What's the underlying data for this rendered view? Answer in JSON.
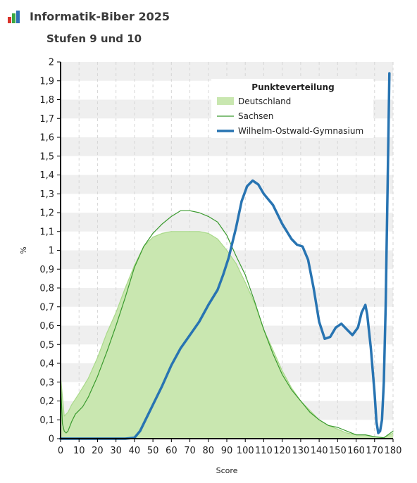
{
  "header": {
    "title": "Informatik-Biber 2025",
    "subtitle": "Stufen 9 und 10"
  },
  "colors": {
    "deutschland_fill": "#c9e7b0",
    "deutschland_line": "#a9d98a",
    "sachsen": "#3a9a2e",
    "gymnasium": "#2874b2",
    "band": "#efefef",
    "logo": [
      "#d9342b",
      "#3aa844",
      "#2f6fb6"
    ]
  },
  "chart_data": {
    "type": "line",
    "xlabel": "Score",
    "ylabel": "%",
    "xlim": [
      0,
      180
    ],
    "ylim": [
      0,
      2
    ],
    "x_ticks": [
      "0",
      "10",
      "20",
      "30",
      "40",
      "50",
      "60",
      "70",
      "80",
      "90",
      "100",
      "110",
      "120",
      "130",
      "140",
      "150",
      "160",
      "170",
      "180"
    ],
    "y_ticks": [
      "0",
      "0,1",
      "0,2",
      "0,3",
      "0,4",
      "0,5",
      "0,6",
      "0,7",
      "0,8",
      "0,9",
      "1",
      "1,1",
      "1,2",
      "1,3",
      "1,4",
      "1,5",
      "1,6",
      "1,7",
      "1,8",
      "1,9",
      "2"
    ],
    "legend": {
      "title": "Punkteverteilung",
      "position": "top-right",
      "entries": [
        "Deutschland",
        "Sachsen",
        "Wilhelm-Ostwald-Gymnasium"
      ]
    },
    "series": [
      {
        "name": "Deutschland",
        "style": "area",
        "points": [
          [
            0,
            0.33
          ],
          [
            2,
            0.12
          ],
          [
            4,
            0.14
          ],
          [
            6,
            0.18
          ],
          [
            8,
            0.21
          ],
          [
            10,
            0.24
          ],
          [
            15,
            0.32
          ],
          [
            20,
            0.43
          ],
          [
            25,
            0.56
          ],
          [
            30,
            0.67
          ],
          [
            35,
            0.8
          ],
          [
            40,
            0.92
          ],
          [
            45,
            1.02
          ],
          [
            50,
            1.07
          ],
          [
            55,
            1.09
          ],
          [
            60,
            1.1
          ],
          [
            65,
            1.1
          ],
          [
            70,
            1.1
          ],
          [
            75,
            1.1
          ],
          [
            80,
            1.09
          ],
          [
            85,
            1.06
          ],
          [
            90,
            1.0
          ],
          [
            95,
            0.93
          ],
          [
            100,
            0.83
          ],
          [
            105,
            0.72
          ],
          [
            110,
            0.58
          ],
          [
            115,
            0.47
          ],
          [
            120,
            0.36
          ],
          [
            125,
            0.27
          ],
          [
            130,
            0.2
          ],
          [
            135,
            0.15
          ],
          [
            140,
            0.1
          ],
          [
            145,
            0.07
          ],
          [
            150,
            0.05
          ],
          [
            155,
            0.03
          ],
          [
            160,
            0.02
          ],
          [
            165,
            0.02
          ],
          [
            170,
            0.01
          ],
          [
            175,
            0.005
          ],
          [
            180,
            0.03
          ]
        ]
      },
      {
        "name": "Sachsen",
        "style": "thin",
        "points": [
          [
            0,
            0.3
          ],
          [
            1,
            0.08
          ],
          [
            2,
            0.04
          ],
          [
            3,
            0.03
          ],
          [
            4,
            0.04
          ],
          [
            6,
            0.09
          ],
          [
            8,
            0.13
          ],
          [
            10,
            0.15
          ],
          [
            12,
            0.17
          ],
          [
            15,
            0.22
          ],
          [
            20,
            0.33
          ],
          [
            25,
            0.46
          ],
          [
            30,
            0.6
          ],
          [
            35,
            0.75
          ],
          [
            40,
            0.91
          ],
          [
            45,
            1.02
          ],
          [
            50,
            1.09
          ],
          [
            55,
            1.14
          ],
          [
            60,
            1.18
          ],
          [
            65,
            1.21
          ],
          [
            70,
            1.21
          ],
          [
            75,
            1.2
          ],
          [
            80,
            1.18
          ],
          [
            85,
            1.15
          ],
          [
            90,
            1.08
          ],
          [
            95,
            0.97
          ],
          [
            100,
            0.87
          ],
          [
            105,
            0.73
          ],
          [
            110,
            0.58
          ],
          [
            115,
            0.45
          ],
          [
            120,
            0.34
          ],
          [
            125,
            0.26
          ],
          [
            130,
            0.2
          ],
          [
            135,
            0.14
          ],
          [
            140,
            0.1
          ],
          [
            145,
            0.07
          ],
          [
            150,
            0.06
          ],
          [
            155,
            0.04
          ],
          [
            160,
            0.02
          ],
          [
            165,
            0.02
          ],
          [
            170,
            0.01
          ],
          [
            175,
            0.005
          ],
          [
            180,
            0.04
          ]
        ]
      },
      {
        "name": "Wilhelm-Ostwald-Gymnasium",
        "style": "thick",
        "points": [
          [
            0,
            0
          ],
          [
            35,
            0
          ],
          [
            40,
            0.005
          ],
          [
            43,
            0.04
          ],
          [
            46,
            0.1
          ],
          [
            50,
            0.18
          ],
          [
            55,
            0.28
          ],
          [
            60,
            0.39
          ],
          [
            65,
            0.48
          ],
          [
            70,
            0.55
          ],
          [
            75,
            0.62
          ],
          [
            80,
            0.71
          ],
          [
            85,
            0.79
          ],
          [
            88,
            0.87
          ],
          [
            91,
            0.96
          ],
          [
            95,
            1.12
          ],
          [
            98,
            1.26
          ],
          [
            101,
            1.34
          ],
          [
            104,
            1.37
          ],
          [
            107,
            1.35
          ],
          [
            110,
            1.3
          ],
          [
            115,
            1.24
          ],
          [
            120,
            1.14
          ],
          [
            125,
            1.06
          ],
          [
            128,
            1.03
          ],
          [
            131,
            1.02
          ],
          [
            134,
            0.95
          ],
          [
            137,
            0.8
          ],
          [
            140,
            0.62
          ],
          [
            143,
            0.53
          ],
          [
            146,
            0.54
          ],
          [
            149,
            0.59
          ],
          [
            152,
            0.61
          ],
          [
            155,
            0.58
          ],
          [
            158,
            0.55
          ],
          [
            161,
            0.59
          ],
          [
            163,
            0.67
          ],
          [
            165,
            0.71
          ],
          [
            166,
            0.66
          ],
          [
            168,
            0.48
          ],
          [
            170,
            0.24
          ],
          [
            171,
            0.09
          ],
          [
            172,
            0.03
          ],
          [
            173,
            0.04
          ],
          [
            174,
            0.1
          ],
          [
            175,
            0.3
          ],
          [
            176,
            0.7
          ],
          [
            177,
            1.3
          ],
          [
            178,
            1.94
          ]
        ]
      }
    ]
  }
}
